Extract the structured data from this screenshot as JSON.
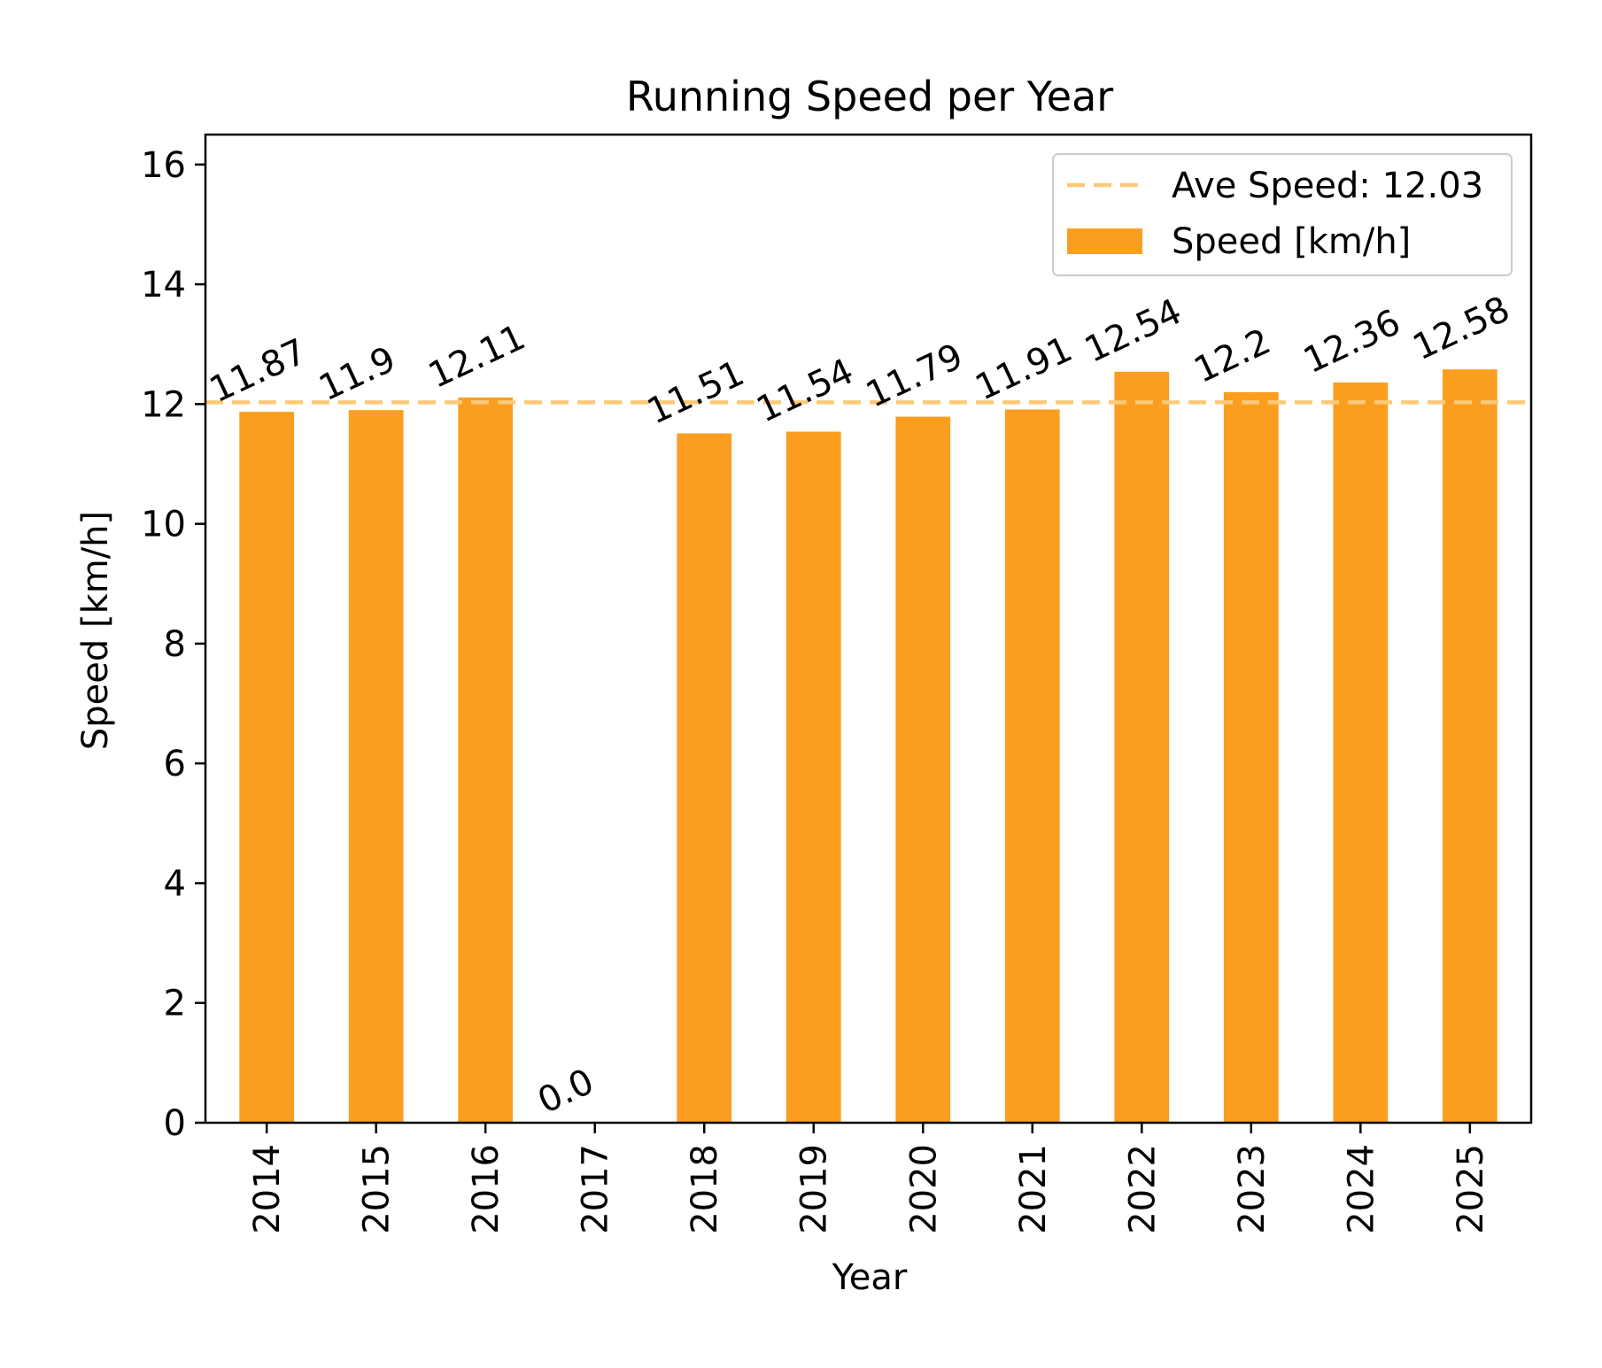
{
  "chart_data": {
    "type": "bar",
    "title": "Running Speed per Year",
    "xlabel": "Year",
    "ylabel": "Speed [km/h]",
    "categories": [
      "2014",
      "2015",
      "2016",
      "2017",
      "2018",
      "2019",
      "2020",
      "2021",
      "2022",
      "2023",
      "2024",
      "2025"
    ],
    "series": [
      {
        "name": "Speed [km/h]",
        "color": "#fb9e1f",
        "values": [
          11.87,
          11.9,
          12.11,
          0.0,
          11.51,
          11.54,
          11.79,
          11.91,
          12.54,
          12.2,
          12.36,
          12.58
        ],
        "labels": [
          "11.87",
          "11.9",
          "12.11",
          "0.0",
          "11.51",
          "11.54",
          "11.79",
          "11.91",
          "12.54",
          "12.2",
          "12.36",
          "12.58"
        ]
      }
    ],
    "average": {
      "value": 12.03,
      "label": "Ave Speed: 12.03",
      "color": "#fdc978",
      "style": "dashed"
    },
    "ylim": [
      0,
      16.5
    ],
    "yticks": [
      0,
      2,
      4,
      6,
      8,
      10,
      12,
      14,
      16
    ],
    "grid": false,
    "legend_position": "top-right",
    "legend_order": [
      "average",
      "series"
    ]
  }
}
